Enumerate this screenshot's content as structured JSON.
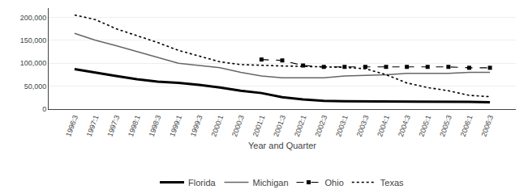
{
  "chart_data": {
    "type": "line",
    "xlabel": "Year and Quarter",
    "categories": [
      "1996:3",
      "1997:1",
      "1997:3",
      "1998:1",
      "1998:3",
      "1999:1",
      "1999:3",
      "2000:1",
      "2000:3",
      "2001:1",
      "2001:3",
      "2002:1",
      "2002:3",
      "2003:1",
      "2003:3",
      "2004:1",
      "2004:3",
      "2005:1",
      "2005:3",
      "2006:1",
      "2006:3"
    ],
    "series": [
      {
        "name": "Florida",
        "color": "#000000",
        "line_style": "solid",
        "values": [
          87000,
          79000,
          72000,
          65000,
          60000,
          57000,
          53000,
          47000,
          40000,
          35000,
          26000,
          21000,
          18000,
          17000,
          17000,
          17000,
          17000,
          17000,
          16000,
          16000,
          15000
        ]
      },
      {
        "name": "Michigan",
        "color": "#666666",
        "line_style": "solid",
        "values": [
          165000,
          150000,
          138000,
          125000,
          112000,
          100000,
          95000,
          90000,
          80000,
          72000,
          68000,
          68000,
          68000,
          72000,
          73000,
          75000,
          78000,
          78000,
          78000,
          80000,
          80000
        ]
      },
      {
        "name": "Ohio",
        "color": "#000000",
        "line_style": "dashed",
        "marker": "square",
        "values": [
          null,
          null,
          null,
          null,
          null,
          null,
          null,
          null,
          null,
          108000,
          106000,
          95000,
          92000,
          92000,
          92000,
          92000,
          92000,
          92000,
          92000,
          90000,
          90000
        ]
      },
      {
        "name": "Texas",
        "color": "#000000",
        "line_style": "dotted",
        "values": [
          205000,
          195000,
          175000,
          160000,
          145000,
          128000,
          115000,
          103000,
          97000,
          95000,
          94000,
          93000,
          92000,
          91000,
          88000,
          75000,
          57000,
          47000,
          40000,
          30000,
          27000
        ]
      }
    ],
    "ylim": [
      0,
      220000
    ],
    "yticks": [
      0,
      {
        "value": 50000,
        "label": "50,000"
      },
      {
        "value": 100000,
        "label": "100,000"
      },
      {
        "value": 150000,
        "label": "150,000"
      },
      {
        "value": 200000,
        "label": "200,000"
      }
    ],
    "grid": true,
    "legend": "bottom"
  }
}
